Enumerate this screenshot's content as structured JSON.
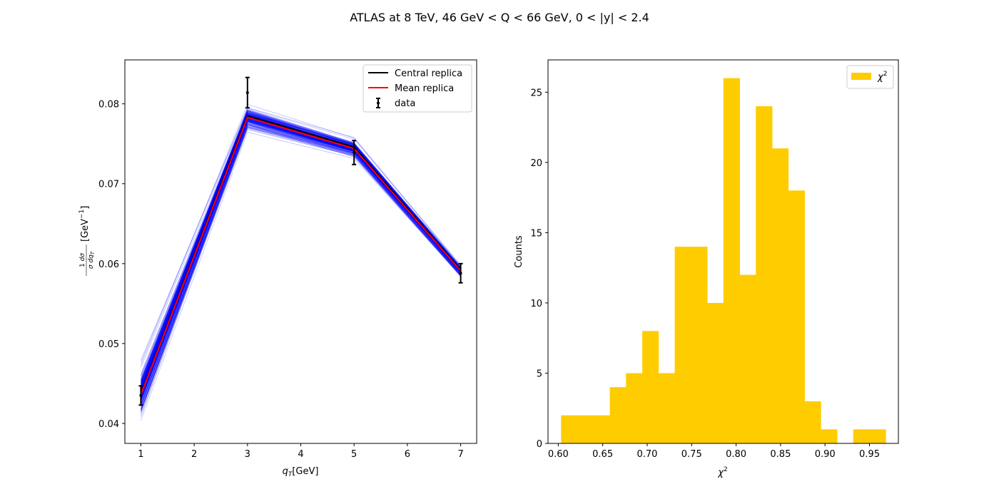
{
  "figure": {
    "suptitle": "ATLAS at 8 TeV, 46 GeV < Q < 66 GeV, 0 < |y| < 2.4"
  },
  "chart_data": [
    {
      "type": "line",
      "xlabel_base": "q",
      "xlabel_sub": "T",
      "xlabel_unit": "[GeV]",
      "ylabel_unit": "[GeV",
      "ylabel_exp": "−1",
      "xlim": [
        0.7,
        7.3
      ],
      "ylim": [
        0.0375,
        0.0855
      ],
      "xticks": [
        1,
        2,
        3,
        4,
        5,
        6,
        7
      ],
      "yticks": [
        0.04,
        0.05,
        0.06,
        0.07,
        0.08
      ],
      "ytick_labels": [
        "0.04",
        "0.05",
        "0.06",
        "0.07",
        "0.08"
      ],
      "x": [
        1,
        3,
        5,
        7
      ],
      "replicas": {
        "count": 200,
        "color": "#0000ff",
        "mean": [
          0.0438,
          0.0783,
          0.0744,
          0.0591
        ],
        "spread": [
          0.0018,
          0.0008,
          0.0006,
          0.0004
        ]
      },
      "series": [
        {
          "name": "Central replica",
          "color": "#000000",
          "values": [
            0.0437,
            0.0785,
            0.0746,
            0.0592
          ]
        },
        {
          "name": "Mean replica",
          "color": "#ff0000",
          "values": [
            0.0436,
            0.0783,
            0.0744,
            0.0591
          ]
        }
      ],
      "data": {
        "name": "data",
        "values": [
          0.0435,
          0.0814,
          0.0739,
          0.0588
        ],
        "errors": [
          0.0012,
          0.0019,
          0.0015,
          0.0012
        ]
      },
      "legend_placement": "top-right"
    },
    {
      "type": "bar",
      "xlabel": "χ",
      "xlabel_exp": "2",
      "ylabel": "Counts",
      "xlim": [
        0.5885,
        0.9825
      ],
      "ylim": [
        0,
        27.3
      ],
      "xticks": [
        0.6,
        0.65,
        0.7,
        0.75,
        0.8,
        0.85,
        0.9,
        0.95
      ],
      "xtick_labels": [
        "0.60",
        "0.65",
        "0.70",
        "0.75",
        "0.80",
        "0.85",
        "0.90",
        "0.95"
      ],
      "yticks": [
        0,
        5,
        10,
        15,
        20,
        25
      ],
      "color": "#ffcc00",
      "bin_edges": [
        0.6032,
        0.6215,
        0.6397,
        0.658,
        0.6762,
        0.6945,
        0.7127,
        0.731,
        0.7492,
        0.7675,
        0.7857,
        0.804,
        0.8222,
        0.8405,
        0.8587,
        0.877,
        0.8952,
        0.9135,
        0.9317,
        0.95,
        0.9682
      ],
      "counts": [
        2,
        2,
        2,
        4,
        5,
        8,
        5,
        14,
        14,
        10,
        26,
        12,
        24,
        21,
        18,
        3,
        1,
        0,
        1,
        1
      ],
      "legend": {
        "label": "χ",
        "exp": "2"
      },
      "legend_placement": "top-right"
    }
  ]
}
